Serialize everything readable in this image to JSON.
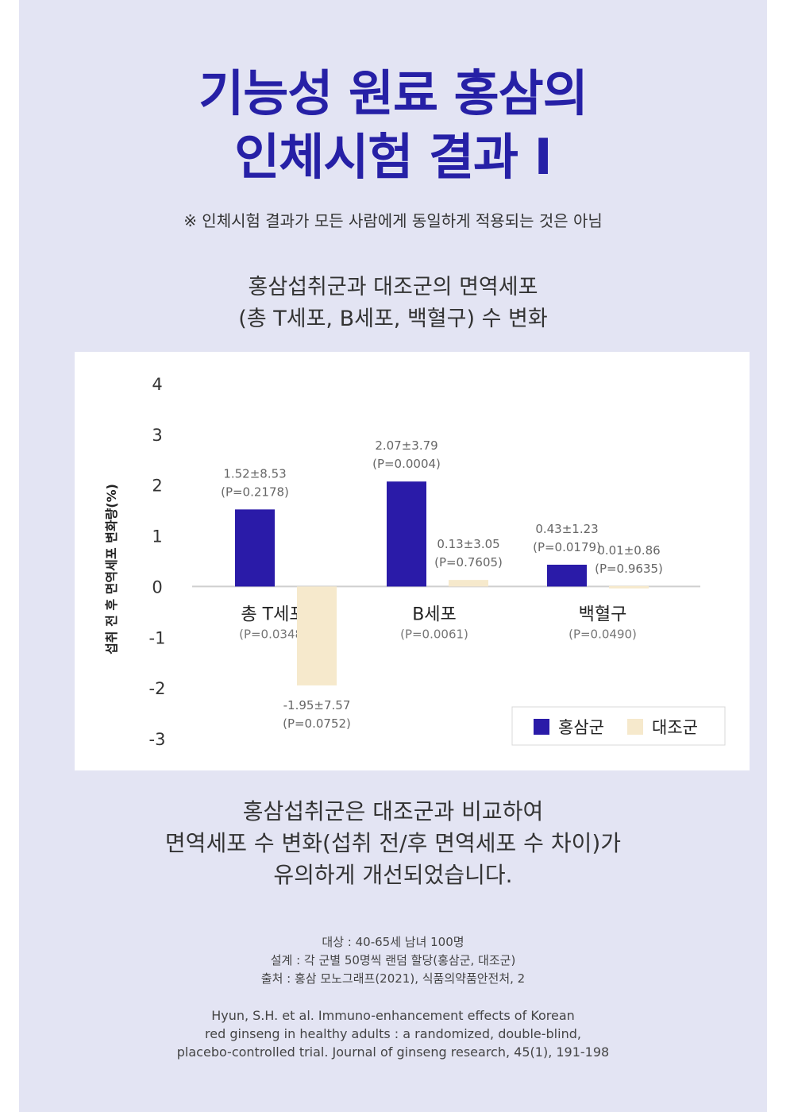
{
  "header": {
    "title_lines": [
      "기능성 원료 홍삼의",
      "인체시험 결과 I"
    ],
    "notice": "※ 인체시험 결과가 모든 사람에게 동일하게 적용되는 것은 아님",
    "chart_title_lines": [
      "홍삼섭취군과 대조군의 면역세포",
      "(총 T세포, B세포, 백혈구) 수 변화"
    ]
  },
  "chart_data": {
    "type": "bar",
    "ylabel": "섭취 전 후 면역세포 변화량(%)",
    "ylim": [
      -3,
      4
    ],
    "yticks": [
      "4",
      "3",
      "2",
      "1",
      "0",
      "-1",
      "-2",
      "-3"
    ],
    "grid": false,
    "legend_position": "bottom-right",
    "categories": [
      "총 T세포",
      "B세포",
      "백혈구"
    ],
    "category_pvalues": [
      "(P=0.0348)",
      "(P=0.0061)",
      "(P=0.0490)"
    ],
    "series": [
      {
        "name": "홍삼군",
        "color": "#2a1ba8",
        "values": [
          1.52,
          2.07,
          0.43
        ],
        "labels": [
          "1.52±8.53",
          "2.07±3.79",
          "0.43±1.23"
        ],
        "pvalues": [
          "(P=0.2178)",
          "(P=0.0004)",
          "(P=0.0179)"
        ]
      },
      {
        "name": "대조군",
        "color": "#f6e9cc",
        "values": [
          -1.95,
          0.13,
          0.01
        ],
        "labels": [
          "-1.95±7.57",
          "0.13±3.05",
          "0.01±0.86"
        ],
        "pvalues": [
          "(P=0.0752)",
          "(P=0.7605)",
          "(P=0.9635)"
        ]
      }
    ]
  },
  "body": {
    "conclusion_lines": [
      "홍삼섭취군은 대조군과 비교하여",
      "면역세포 수 변화(섭취 전/후 면역세포 수 차이)가",
      "유의하게 개선되었습니다."
    ],
    "meta_lines": [
      "대상 : 40-65세 남녀 100명",
      "설계 : 각 군별 50명씩 랜덤 할당(홍삼군, 대조군)",
      "출처 : 홍삼 모노그래프(2021), 식품의약품안전처, 2"
    ],
    "reference_lines": [
      "Hyun, S.H. et al. Immuno-enhancement effects of Korean",
      "red ginseng in healthy adults : a randomized, double-blind,",
      "placebo-controlled trial. Journal of ginseng research, 45(1), 191-198"
    ]
  }
}
